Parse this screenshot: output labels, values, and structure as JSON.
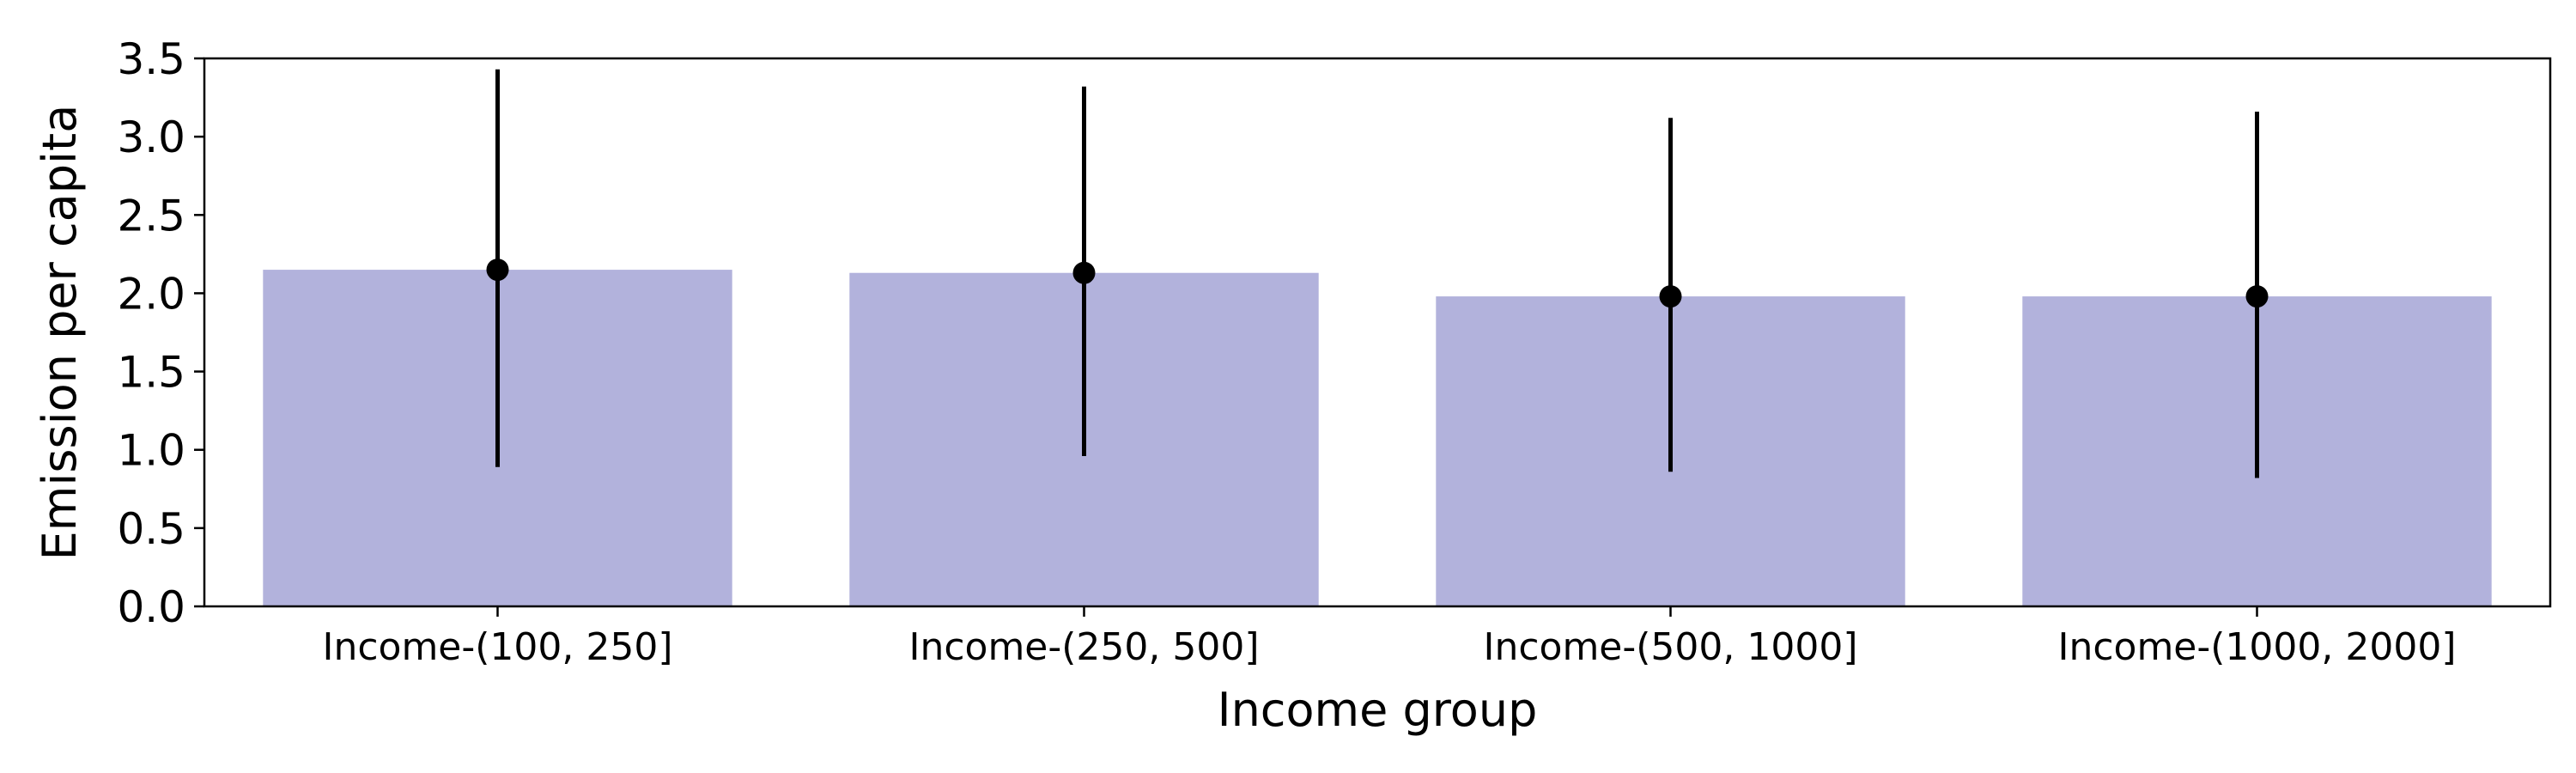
{
  "chart_data": {
    "type": "bar",
    "xlabel": "Income group",
    "ylabel": "Emission per capita",
    "categories": [
      "Income-(100, 250]",
      "Income-(250, 500]",
      "Income-(500, 1000]",
      "Income-(1000, 2000]"
    ],
    "values": [
      2.15,
      2.13,
      1.98,
      1.98
    ],
    "error_low": [
      0.89,
      0.96,
      0.86,
      0.82
    ],
    "error_high": [
      3.43,
      3.32,
      3.12,
      3.16
    ],
    "ylim": [
      0,
      3.5
    ],
    "yticks": [
      "0.0",
      "0.5",
      "1.0",
      "1.5",
      "2.0",
      "2.5",
      "3.0",
      "3.5"
    ],
    "grid": false,
    "bar_color": "#b2b2dc",
    "point_color": "#000000"
  }
}
